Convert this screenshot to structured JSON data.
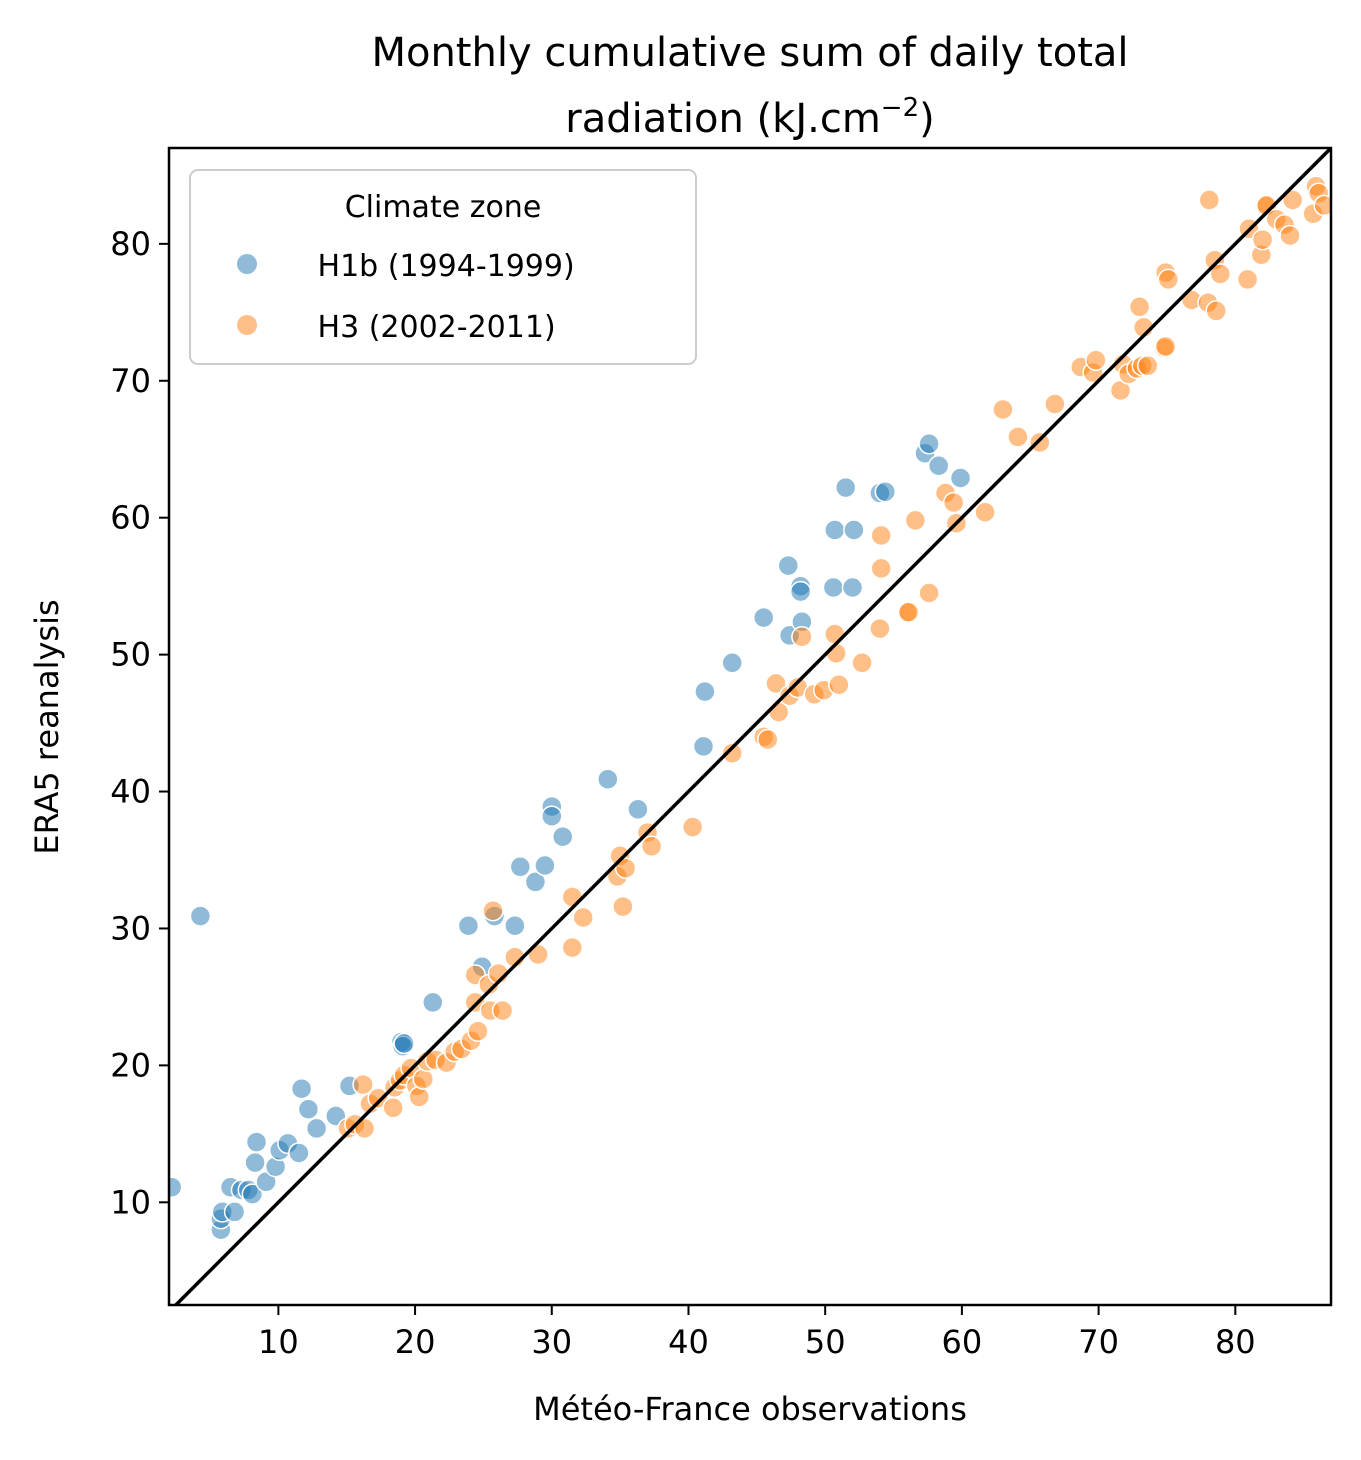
{
  "chart_data": {
    "type": "scatter",
    "title_line1": "Monthly cumulative sum of daily total",
    "title_line2_main": "radiation (kJ.cm",
    "title_line2_sup": "−2",
    "title_line2_end": ")",
    "xlabel": "Météo-France observations",
    "ylabel": "ERA5 reanalysis",
    "xlim": [
      2,
      87
    ],
    "ylim": [
      2.5,
      87
    ],
    "xticks": [
      10,
      20,
      30,
      40,
      50,
      60,
      70,
      80
    ],
    "yticks": [
      10,
      20,
      30,
      40,
      50,
      60,
      70,
      80
    ],
    "legend_title": "Climate zone",
    "legend_position": "top-left",
    "identity_line": true,
    "series": [
      {
        "name": " H1b (1994-1999)",
        "color": "#1f77b4",
        "points": [
          [
            2.2,
            11.1
          ],
          [
            4.3,
            30.9
          ],
          [
            5.8,
            8.0
          ],
          [
            5.8,
            8.8
          ],
          [
            5.9,
            9.3
          ],
          [
            6.5,
            11.1
          ],
          [
            6.8,
            9.3
          ],
          [
            7.3,
            10.9
          ],
          [
            7.8,
            10.9
          ],
          [
            8.1,
            10.6
          ],
          [
            8.3,
            12.9
          ],
          [
            8.4,
            14.4
          ],
          [
            9.1,
            11.5
          ],
          [
            9.8,
            12.6
          ],
          [
            10.1,
            13.8
          ],
          [
            10.7,
            14.3
          ],
          [
            11.5,
            13.6
          ],
          [
            11.7,
            18.3
          ],
          [
            12.2,
            16.8
          ],
          [
            12.8,
            15.4
          ],
          [
            14.2,
            16.3
          ],
          [
            15.2,
            18.5
          ],
          [
            19.0,
            21.7
          ],
          [
            19.1,
            21.4
          ],
          [
            19.2,
            21.6
          ],
          [
            21.3,
            24.6
          ],
          [
            23.9,
            30.2
          ],
          [
            24.9,
            27.2
          ],
          [
            25.8,
            30.9
          ],
          [
            27.3,
            30.2
          ],
          [
            27.7,
            34.5
          ],
          [
            28.8,
            33.4
          ],
          [
            29.5,
            34.6
          ],
          [
            30.0,
            38.9
          ],
          [
            30.0,
            38.2
          ],
          [
            30.8,
            36.7
          ],
          [
            34.1,
            40.9
          ],
          [
            36.3,
            38.7
          ],
          [
            41.2,
            47.3
          ],
          [
            41.1,
            43.3
          ],
          [
            43.2,
            49.4
          ],
          [
            45.5,
            52.7
          ],
          [
            47.3,
            56.5
          ],
          [
            47.4,
            51.4
          ],
          [
            48.2,
            55.0
          ],
          [
            48.2,
            54.6
          ],
          [
            48.3,
            52.4
          ],
          [
            50.6,
            54.9
          ],
          [
            50.7,
            59.1
          ],
          [
            51.5,
            62.2
          ],
          [
            52.0,
            54.9
          ],
          [
            52.1,
            59.1
          ],
          [
            54.0,
            61.8
          ],
          [
            54.4,
            61.9
          ],
          [
            57.3,
            64.7
          ],
          [
            57.6,
            65.4
          ],
          [
            58.3,
            63.8
          ],
          [
            59.9,
            62.9
          ]
        ]
      },
      {
        "name": " H3 (2002-2011)",
        "color": "#ff7f0e",
        "points": [
          [
            15.1,
            15.4
          ],
          [
            15.6,
            15.7
          ],
          [
            16.2,
            18.6
          ],
          [
            16.3,
            15.4
          ],
          [
            16.7,
            17.2
          ],
          [
            17.3,
            17.6
          ],
          [
            18.4,
            16.9
          ],
          [
            18.5,
            18.4
          ],
          [
            18.9,
            18.9
          ],
          [
            19.2,
            19.3
          ],
          [
            19.7,
            19.8
          ],
          [
            20.1,
            18.5
          ],
          [
            20.3,
            17.7
          ],
          [
            20.6,
            19.0
          ],
          [
            20.9,
            20.3
          ],
          [
            21.5,
            20.4
          ],
          [
            22.3,
            20.2
          ],
          [
            22.9,
            21.0
          ],
          [
            23.4,
            21.2
          ],
          [
            24.1,
            21.8
          ],
          [
            24.4,
            24.6
          ],
          [
            24.4,
            26.6
          ],
          [
            24.6,
            22.5
          ],
          [
            25.4,
            25.9
          ],
          [
            25.5,
            24.0
          ],
          [
            25.7,
            31.3
          ],
          [
            26.1,
            26.7
          ],
          [
            26.4,
            24.0
          ],
          [
            27.3,
            27.9
          ],
          [
            29.0,
            28.1
          ],
          [
            31.5,
            32.3
          ],
          [
            31.5,
            28.6
          ],
          [
            32.3,
            30.8
          ],
          [
            34.8,
            33.8
          ],
          [
            35.0,
            35.3
          ],
          [
            35.2,
            31.6
          ],
          [
            35.4,
            34.4
          ],
          [
            37.0,
            37.0
          ],
          [
            37.3,
            36.0
          ],
          [
            40.3,
            37.4
          ],
          [
            43.2,
            42.8
          ],
          [
            45.5,
            44.0
          ],
          [
            45.8,
            43.8
          ],
          [
            46.4,
            47.9
          ],
          [
            46.6,
            45.8
          ],
          [
            47.4,
            47.0
          ],
          [
            48.0,
            47.6
          ],
          [
            48.3,
            51.3
          ],
          [
            49.2,
            47.1
          ],
          [
            49.9,
            47.4
          ],
          [
            50.7,
            51.5
          ],
          [
            50.8,
            50.1
          ],
          [
            51.0,
            47.8
          ],
          [
            52.7,
            49.4
          ],
          [
            54.0,
            51.9
          ],
          [
            54.1,
            56.3
          ],
          [
            54.1,
            58.7
          ],
          [
            56.0,
            53.1
          ],
          [
            56.1,
            53.1
          ],
          [
            56.6,
            59.8
          ],
          [
            57.6,
            54.5
          ],
          [
            58.8,
            61.8
          ],
          [
            59.4,
            61.1
          ],
          [
            59.6,
            59.6
          ],
          [
            61.7,
            60.4
          ],
          [
            63.0,
            67.9
          ],
          [
            64.1,
            65.9
          ],
          [
            65.7,
            65.5
          ],
          [
            66.8,
            68.3
          ],
          [
            68.7,
            71.0
          ],
          [
            69.6,
            70.6
          ],
          [
            69.8,
            71.5
          ],
          [
            71.6,
            69.3
          ],
          [
            71.8,
            71.2
          ],
          [
            72.2,
            70.5
          ],
          [
            72.8,
            70.9
          ],
          [
            73.0,
            75.4
          ],
          [
            73.2,
            71.1
          ],
          [
            73.3,
            73.9
          ],
          [
            73.6,
            71.1
          ],
          [
            74.8,
            72.4
          ],
          [
            74.9,
            72.5
          ],
          [
            74.9,
            77.9
          ],
          [
            75.1,
            77.4
          ],
          [
            76.8,
            75.9
          ],
          [
            78.0,
            75.7
          ],
          [
            78.1,
            83.2
          ],
          [
            78.5,
            78.8
          ],
          [
            78.6,
            75.1
          ],
          [
            78.9,
            77.8
          ],
          [
            80.9,
            77.4
          ],
          [
            81.0,
            81.1
          ],
          [
            81.9,
            79.2
          ],
          [
            82.0,
            80.3
          ],
          [
            82.2,
            82.8
          ],
          [
            82.3,
            82.8
          ],
          [
            83.0,
            81.8
          ],
          [
            83.6,
            81.4
          ],
          [
            84.0,
            80.6
          ],
          [
            84.2,
            83.2
          ],
          [
            85.7,
            82.2
          ],
          [
            85.9,
            84.2
          ],
          [
            86.1,
            83.7
          ],
          [
            86.5,
            82.8
          ]
        ]
      }
    ]
  }
}
